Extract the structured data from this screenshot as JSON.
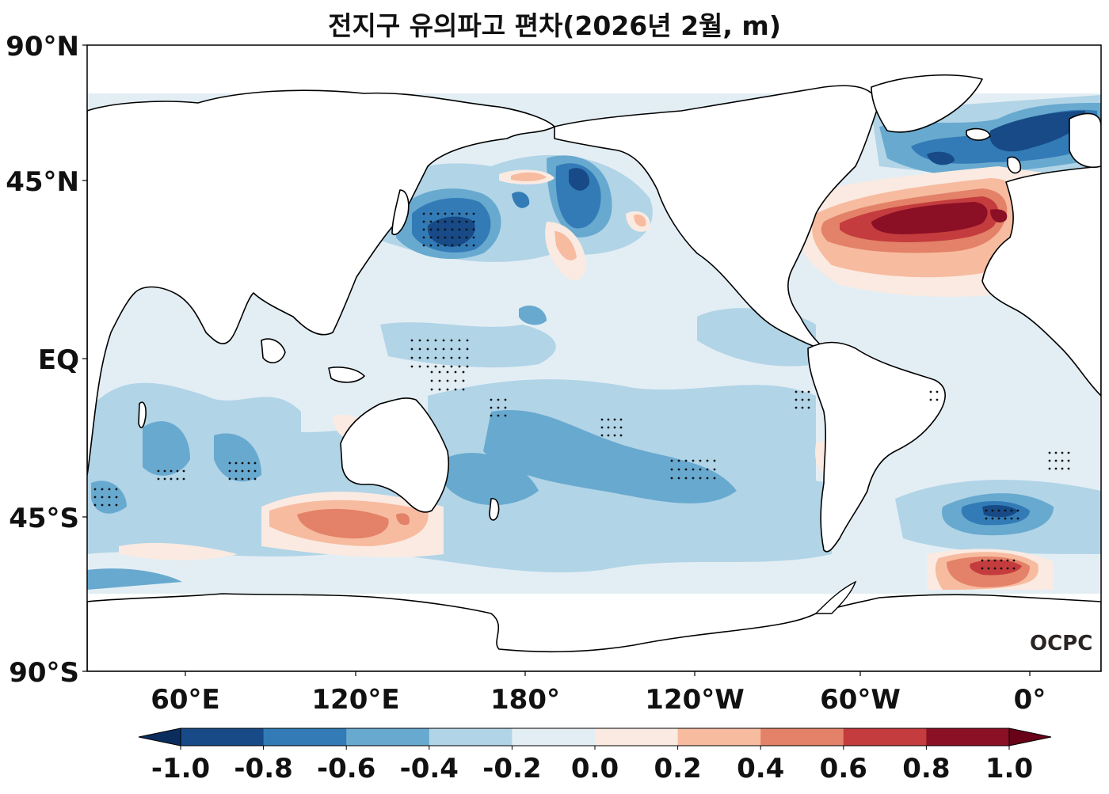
{
  "title": "전지구 유의파고 편차(2026년 2월, m)",
  "logo_text": "OCPC",
  "chart_data": {
    "type": "heatmap",
    "subtype": "filled-contour-map",
    "title": "전지구 유의파고 편차(2026년 2월, m)",
    "variable": "significant wave height anomaly",
    "units": "m",
    "lat_ticks": [
      "90°N",
      "45°N",
      "EQ",
      "45°S",
      "90°S"
    ],
    "lon_ticks": [
      "60°E",
      "120°E",
      "180°",
      "120°W",
      "60°W",
      "0°"
    ],
    "colorbar": {
      "ticks": [
        "-1.0",
        "-0.8",
        "-0.6",
        "-0.4",
        "-0.2",
        "0.0",
        "0.2",
        "0.4",
        "0.6",
        "0.8",
        "1.0"
      ],
      "levels": [
        -1.0,
        -0.8,
        -0.6,
        -0.4,
        -0.2,
        0.0,
        0.2,
        0.4,
        0.6,
        0.8,
        1.0
      ],
      "colors": [
        "#174a86",
        "#327bb6",
        "#68a9cf",
        "#b1d4e7",
        "#e3eef4",
        "#faeae1",
        "#f7bba0",
        "#e38268",
        "#c43c3d",
        "#8b0f25"
      ],
      "under_color": "#0a2d5e",
      "over_color": "#680218",
      "extend": "both"
    },
    "features": [
      {
        "region": "North Atlantic midlatitudes",
        "anomaly": 0.9
      },
      {
        "region": "Norwegian Sea / Iceland",
        "anomaly": -0.9
      },
      {
        "region": "Northwest Pacific (Kuroshio extension)",
        "anomaly": -0.9
      },
      {
        "region": "Gulf of Alaska",
        "anomaly": -0.7
      },
      {
        "region": "South Indian Ocean south of Australia",
        "anomaly": 0.5
      },
      {
        "region": "South Atlantic 45°S",
        "anomaly": -0.7
      },
      {
        "region": "South Atlantic 60°S",
        "anomaly": 0.7
      },
      {
        "region": "South Pacific",
        "anomaly": -0.5
      }
    ]
  }
}
